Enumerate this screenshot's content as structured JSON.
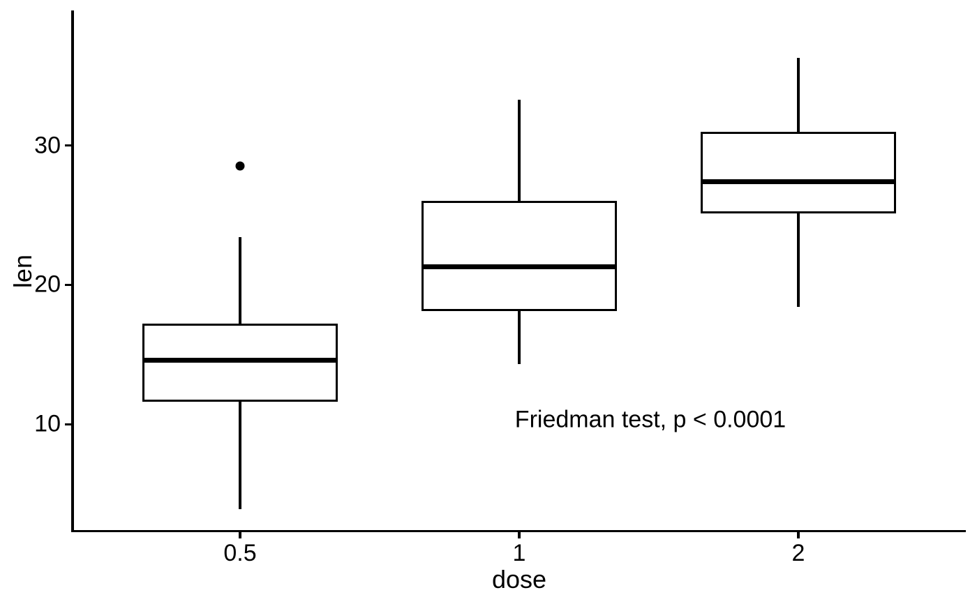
{
  "chart_data": {
    "type": "boxplot",
    "title": "",
    "xlabel": "dose",
    "ylabel": "len",
    "categories": [
      "0.5",
      "1",
      "2"
    ],
    "y_ticks": [
      10,
      20,
      30
    ],
    "ylim": [
      2.4,
      39.7
    ],
    "grid": false,
    "legend": "none",
    "annotation": {
      "text": "Friedman test, p < 0.0001",
      "x": 2.47,
      "y": 10.3
    },
    "boxes": [
      {
        "category": "0.5",
        "whisker_low": 3.9,
        "q1": 11.6,
        "median": 14.6,
        "q3": 17.2,
        "whisker_high": 23.4,
        "outliers": [
          28.5
        ]
      },
      {
        "category": "1",
        "whisker_low": 14.3,
        "q1": 18.1,
        "median": 21.3,
        "q3": 26.0,
        "whisker_high": 33.3,
        "outliers": []
      },
      {
        "category": "2",
        "whisker_low": 18.4,
        "q1": 25.1,
        "median": 27.4,
        "q3": 31.0,
        "whisker_high": 36.3,
        "outliers": []
      }
    ],
    "colors": {
      "line": "#000000",
      "text": "#000000",
      "box_fill": "#ffffff",
      "background": "#ffffff"
    }
  }
}
